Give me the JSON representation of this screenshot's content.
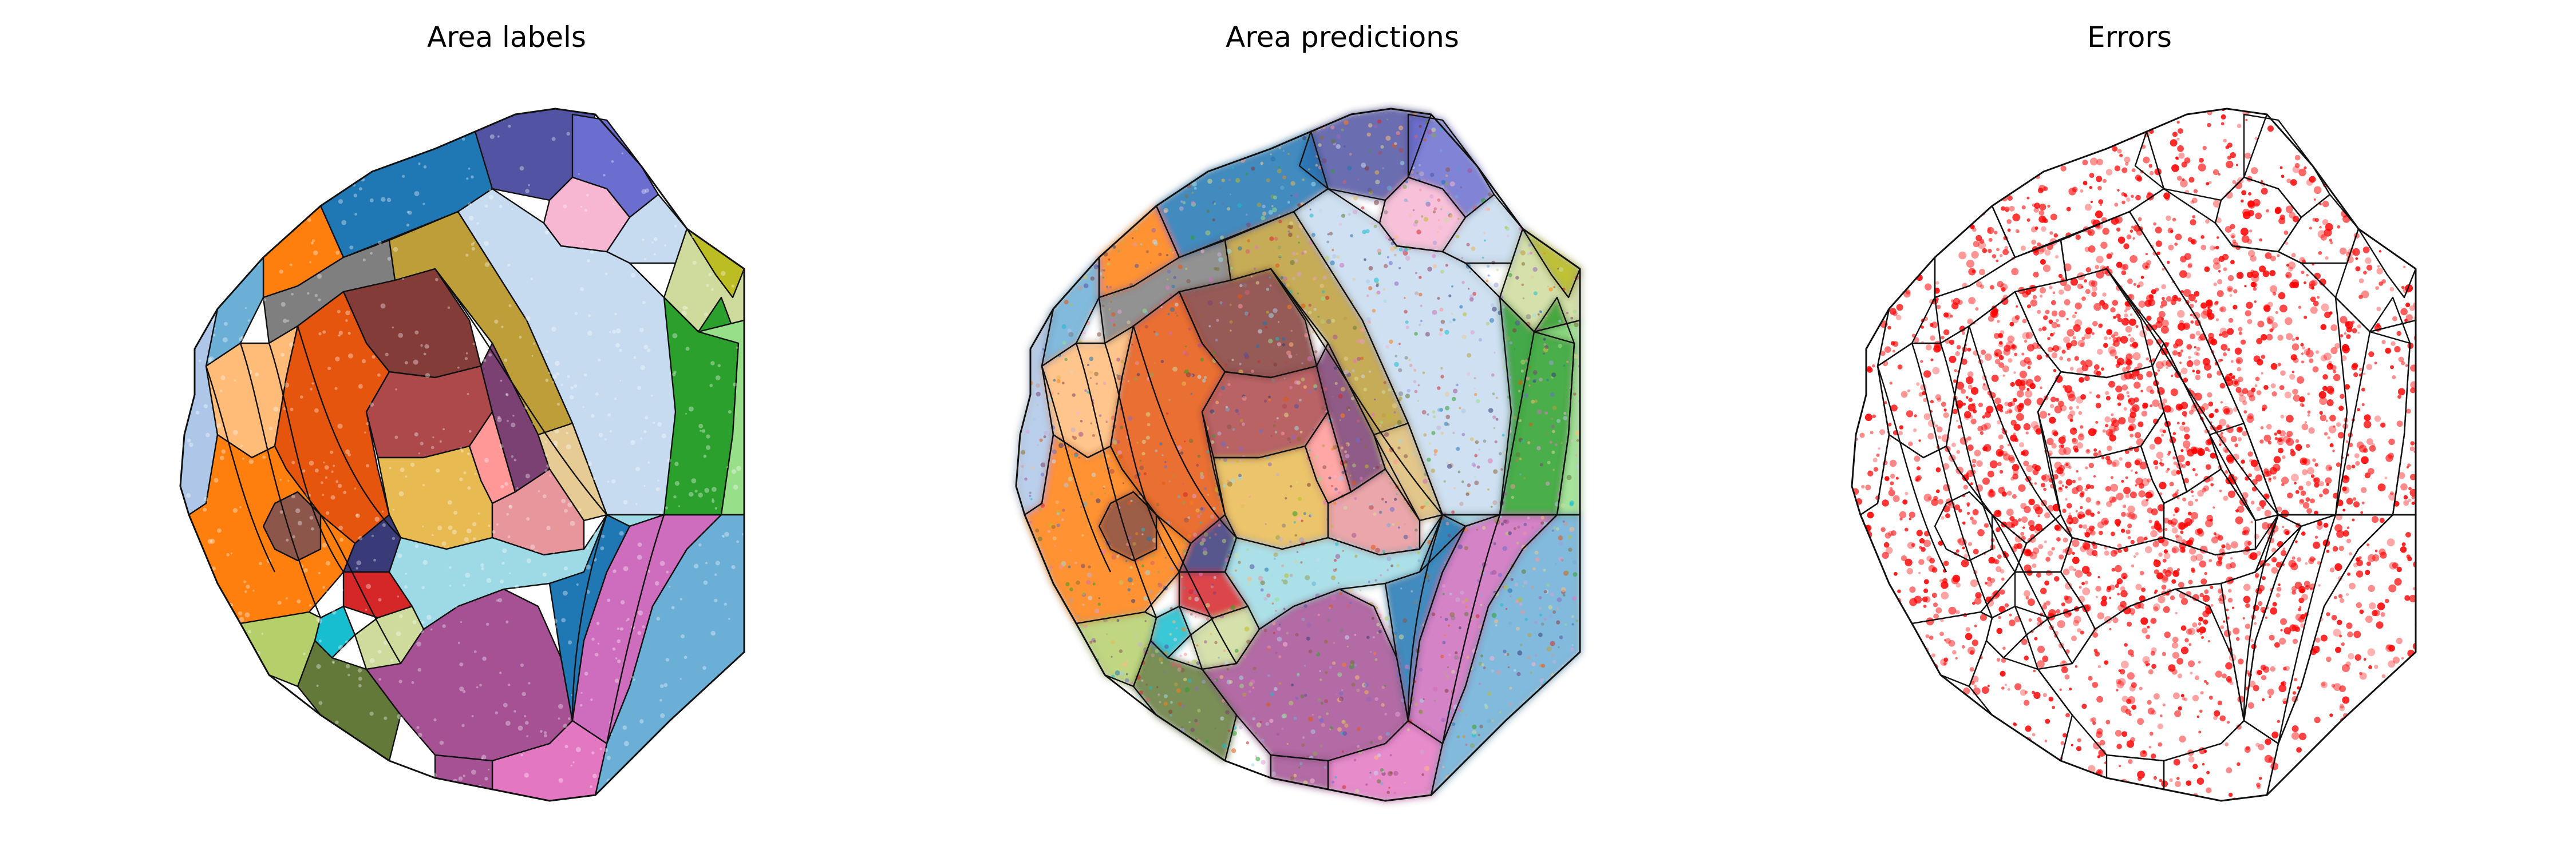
{
  "panels": [
    {
      "id": "labels",
      "title": "Area labels"
    },
    {
      "id": "predictions",
      "title": "Area predictions"
    },
    {
      "id": "errors",
      "title": "Errors"
    }
  ],
  "colors": {
    "outline": "#111111",
    "error": "#ff0000",
    "area_palette": [
      "#1f77b4",
      "#aec7e8",
      "#ff7f0e",
      "#ffbb78",
      "#2ca02c",
      "#98df8a",
      "#d62728",
      "#ff9896",
      "#9467bd",
      "#c5b0d5",
      "#8c564b",
      "#c49c94",
      "#e377c2",
      "#f7b6d2",
      "#7f7f7f",
      "#bcbd22",
      "#dbdb8d",
      "#17becf",
      "#9edae5",
      "#393b79",
      "#5254a3",
      "#6b6ecf",
      "#9c9ede",
      "#637939",
      "#8ca252",
      "#b5cf6b",
      "#cedb9c",
      "#8c6d31",
      "#bd9e39",
      "#e7ba52",
      "#e7cb94",
      "#843c39",
      "#ad494a",
      "#d6616b",
      "#e7969c",
      "#7b4173",
      "#a55194",
      "#ce6dbd",
      "#de9ed6",
      "#e6550d",
      "#6baed6",
      "#c6dbef"
    ]
  }
}
